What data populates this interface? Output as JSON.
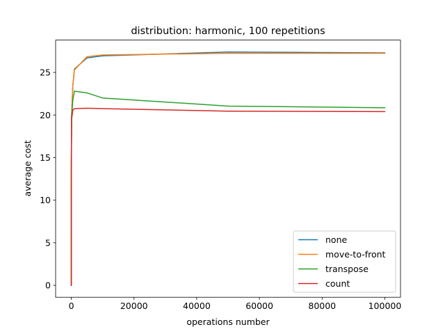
{
  "chart_data": {
    "type": "line",
    "title": "distribution: harmonic, 100 repetitions",
    "xlabel": "operations number",
    "ylabel": "average cost",
    "xlim": [
      -5000,
      105000
    ],
    "ylim": [
      -1.4,
      28.8
    ],
    "xticks": [
      0,
      20000,
      40000,
      60000,
      80000,
      100000
    ],
    "yticks": [
      0,
      5,
      10,
      15,
      20,
      25
    ],
    "grid": false,
    "legend_position": "lower-right",
    "series": [
      {
        "name": "none",
        "color": "#1f77b4",
        "x": [
          0,
          10,
          100,
          500,
          1000,
          5000,
          10000,
          50000,
          100000
        ],
        "y": [
          0,
          14,
          20,
          23.5,
          25.4,
          26.7,
          26.95,
          27.4,
          27.3
        ]
      },
      {
        "name": "move-to-front",
        "color": "#ff7f0e",
        "x": [
          0,
          10,
          100,
          500,
          1000,
          5000,
          10000,
          50000,
          100000
        ],
        "y": [
          0,
          14,
          20,
          23.6,
          25.3,
          26.85,
          27.05,
          27.25,
          27.25
        ]
      },
      {
        "name": "transpose",
        "color": "#2ca02c",
        "x": [
          0,
          10,
          100,
          500,
          1000,
          5000,
          10000,
          50000,
          100000
        ],
        "y": [
          0,
          14,
          19.8,
          21.8,
          22.8,
          22.6,
          22.0,
          21.05,
          20.85
        ]
      },
      {
        "name": "count",
        "color": "#d62728",
        "x": [
          0,
          10,
          100,
          500,
          1000,
          5000,
          10000,
          50000,
          100000
        ],
        "y": [
          0,
          14,
          19.5,
          20.6,
          20.75,
          20.8,
          20.75,
          20.45,
          20.4
        ]
      }
    ]
  }
}
